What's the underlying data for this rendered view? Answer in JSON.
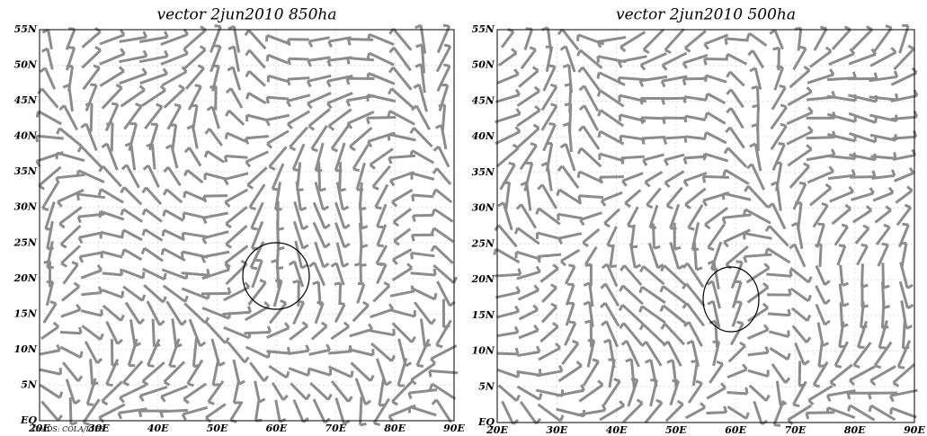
{
  "panels": [
    {
      "title": "vector  2jun2010 850ha",
      "xticks": [
        {
          "value": 20,
          "label": "20E"
        },
        {
          "value": 30,
          "label": "30E"
        },
        {
          "value": 40,
          "label": "40E"
        },
        {
          "value": 50,
          "label": "50E"
        },
        {
          "value": 60,
          "label": "60E"
        },
        {
          "value": 70,
          "label": "70E"
        },
        {
          "value": 80,
          "label": "80E"
        },
        {
          "value": 90,
          "label": "90E"
        }
      ],
      "yticks": [
        {
          "value": 0,
          "label": "EQ"
        },
        {
          "value": 5,
          "label": "5N"
        },
        {
          "value": 10,
          "label": "10N"
        },
        {
          "value": 15,
          "label": "15N"
        },
        {
          "value": 20,
          "label": "20N"
        },
        {
          "value": 25,
          "label": "25N"
        },
        {
          "value": 30,
          "label": "30N"
        },
        {
          "value": 35,
          "label": "35N"
        },
        {
          "value": 40,
          "label": "40N"
        },
        {
          "value": 45,
          "label": "45N"
        },
        {
          "value": 50,
          "label": "50N"
        },
        {
          "value": 55,
          "label": "55N"
        }
      ]
    },
    {
      "title": "vector  2jun2010 500ha",
      "xticks": [
        {
          "value": 20,
          "label": "20E"
        },
        {
          "value": 30,
          "label": "30E"
        },
        {
          "value": 40,
          "label": "40E"
        },
        {
          "value": 50,
          "label": "50E"
        },
        {
          "value": 60,
          "label": "60E"
        },
        {
          "value": 70,
          "label": "70E"
        },
        {
          "value": 80,
          "label": "80E"
        },
        {
          "value": 90,
          "label": "90E"
        }
      ],
      "yticks": [
        {
          "value": 0,
          "label": "EQ"
        },
        {
          "value": 5,
          "label": "5N"
        },
        {
          "value": 10,
          "label": "10N"
        },
        {
          "value": 15,
          "label": "15N"
        },
        {
          "value": 20,
          "label": "20N"
        },
        {
          "value": 25,
          "label": "25N"
        },
        {
          "value": 30,
          "label": "30N"
        },
        {
          "value": 35,
          "label": "35N"
        },
        {
          "value": 40,
          "label": "40N"
        },
        {
          "value": 45,
          "label": "45N"
        },
        {
          "value": 50,
          "label": "50N"
        },
        {
          "value": 55,
          "label": "55N"
        }
      ]
    }
  ],
  "credit": "GrADS: COLA/IGES"
}
